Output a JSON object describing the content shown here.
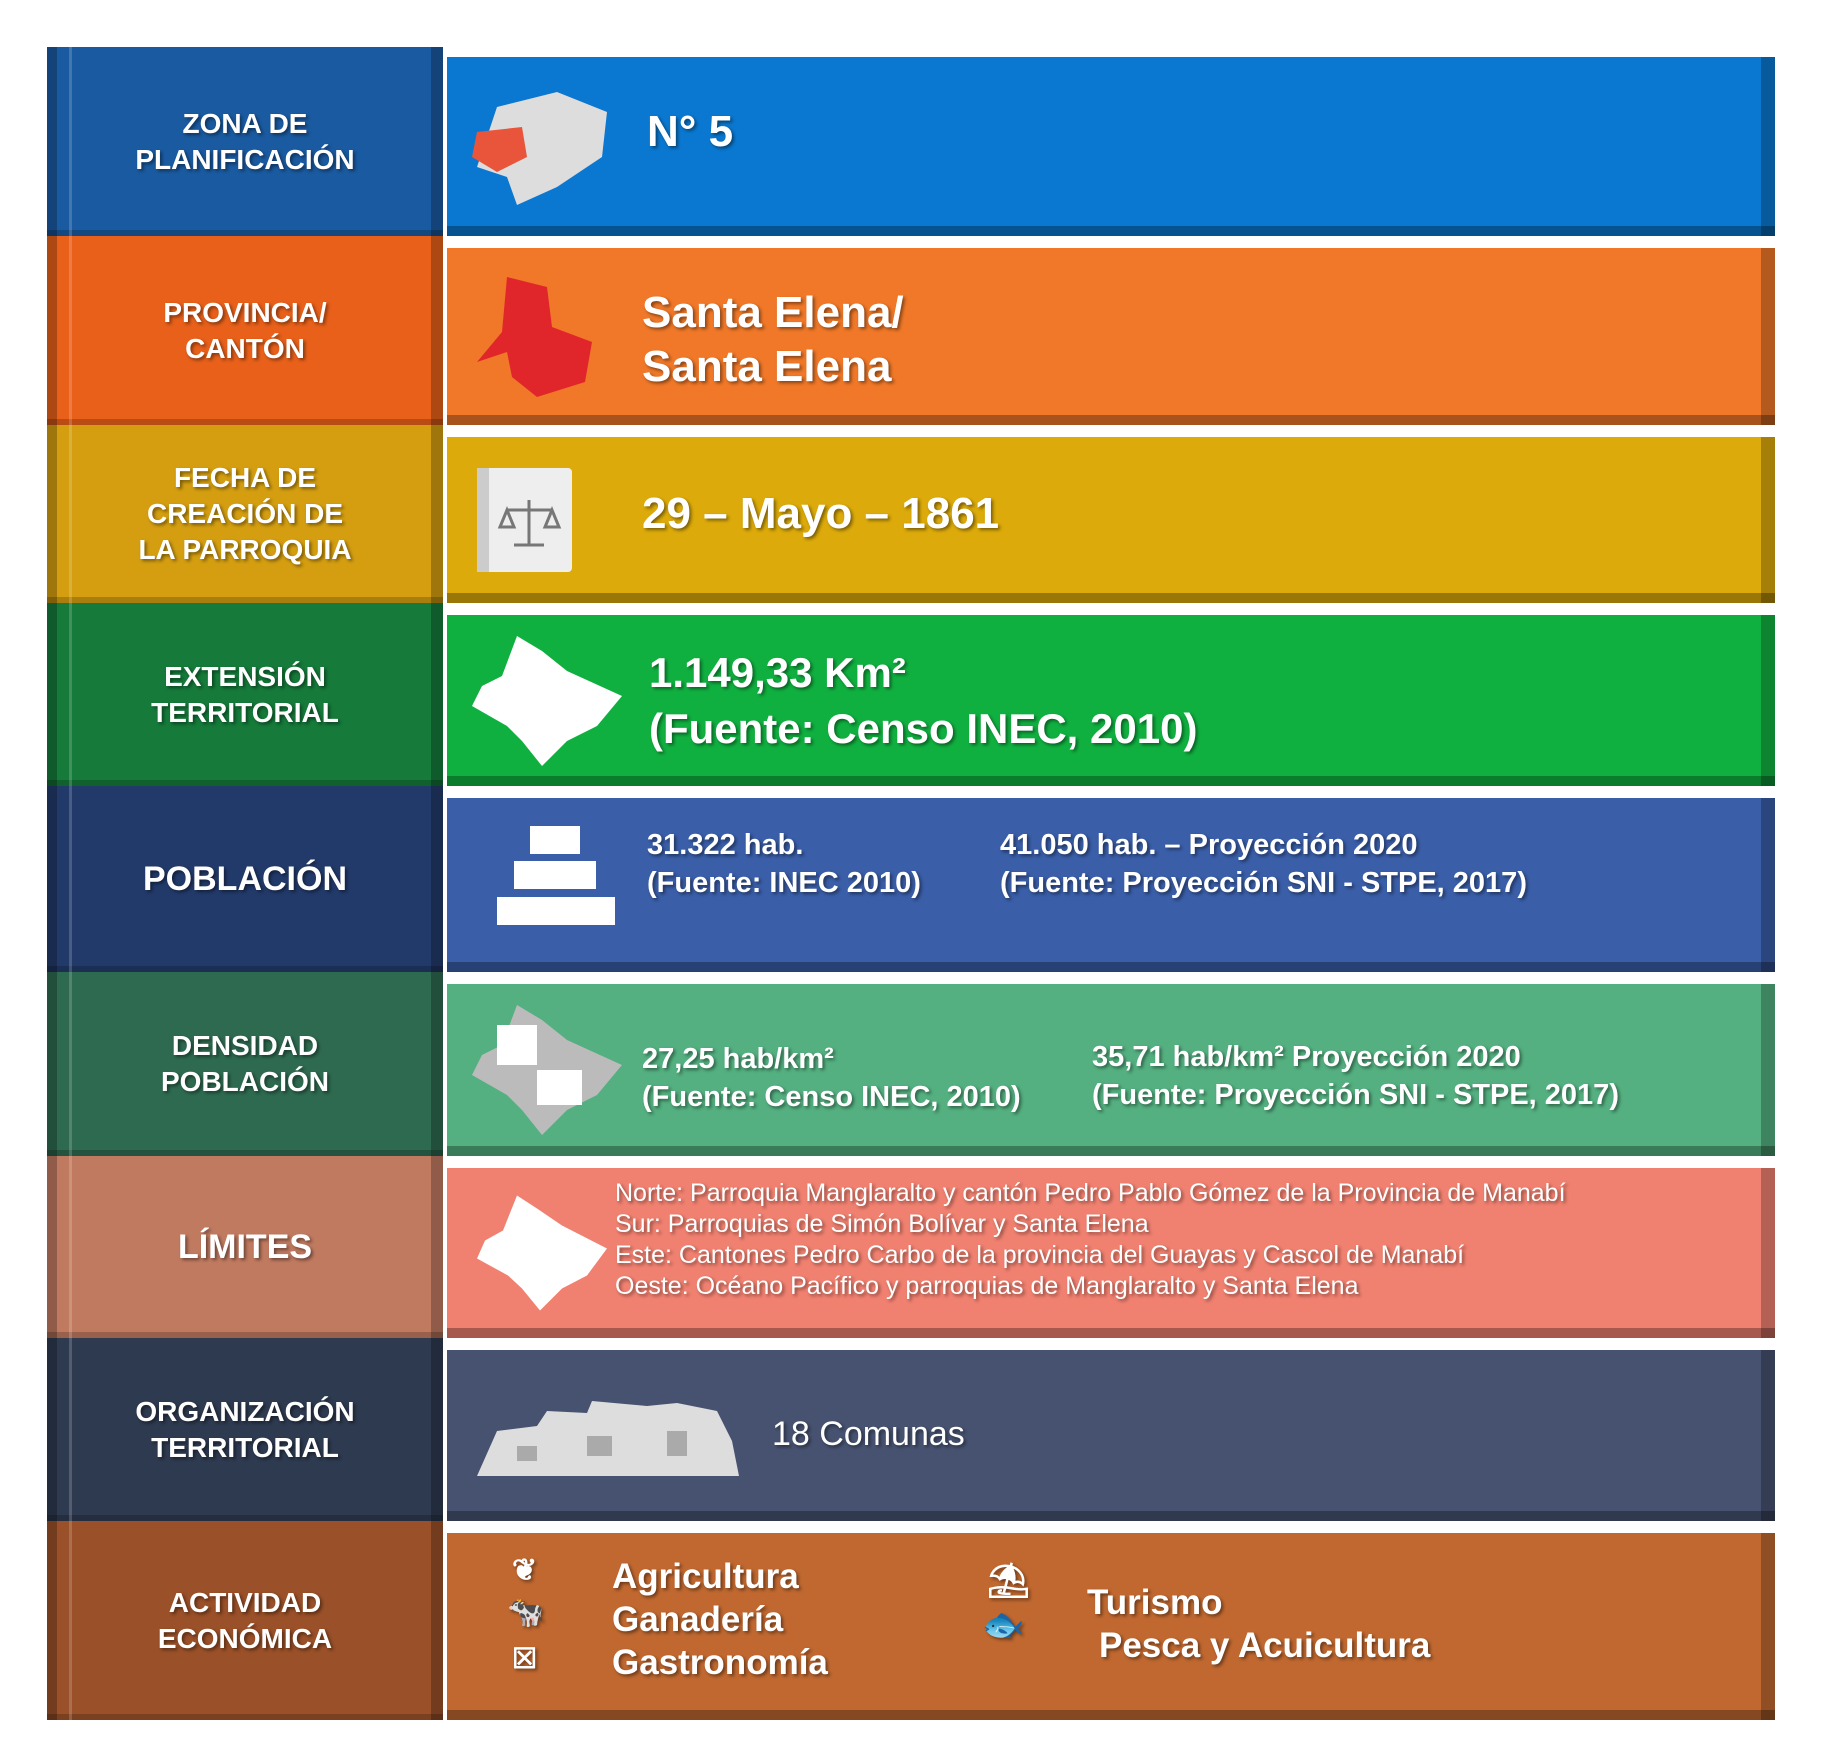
{
  "rows": [
    {
      "label": "ZONA DE\nPLANIFICACIÓN",
      "value": "N° 5",
      "icon": "ecuador-map-icon",
      "left_color": "#1a5aa0",
      "right_color": "#0a78d0"
    },
    {
      "label": "PROVINCIA/\nCANTÓN",
      "value": "Santa Elena/\nSanta Elena",
      "icon": "province-map-icon",
      "left_color": "#e8601a",
      "right_color": "#f07828"
    },
    {
      "label": "FECHA DE\nCREACIÓN DE\nLA PARROQUIA",
      "value": "29 – Mayo – 1861",
      "icon": "law-book-icon",
      "left_color": "#d49e10",
      "right_color": "#dcaa0a"
    },
    {
      "label": "EXTENSIÓN\nTERRITORIAL",
      "value": "1.149,33 Km²\n(Fuente: Censo INEC, 2010)",
      "icon": "territory-map-icon",
      "left_color": "#157a3a",
      "right_color": "#10b040"
    },
    {
      "label": "POBLACIÓN",
      "value_a": "31.322  hab.\n(Fuente: INEC 2010)",
      "value_b": "41.050  hab. – Proyección 2020\n(Fuente: Proyección SNI - STPE, 2017)",
      "icon": "population-icon",
      "left_color": "#223a6a",
      "right_color": "#3a5ea8"
    },
    {
      "label": "DENSIDAD\nPOBLACIÓN",
      "value_a": "27,25 hab/km²\n(Fuente: Censo INEC, 2010)",
      "value_b": "35,71  hab/km² Proyección 2020\n(Fuente: Proyección SNI - STPE, 2017)",
      "icon": "density-map-icon",
      "left_color": "#2e6a50",
      "right_color": "#54b080"
    },
    {
      "label": "LÍMITES",
      "lines": [
        "Norte: Parroquia Manglaralto y cantón Pedro Pablo Gómez de la Provincia de Manabí",
        "Sur: Parroquias de Simón Bolívar y Santa Elena",
        "Este: Cantones Pedro Carbo de la provincia del Guayas y Cascol de Manabí",
        "Oeste: Océano Pacífico y parroquias de Manglaralto y Santa Elena"
      ],
      "icon": "territory-map-icon",
      "left_color": "#c07a60",
      "right_color": "#f08070"
    },
    {
      "label": "ORGANIZACIÓN\nTERRITORIAL",
      "value": "18 Comunas",
      "icon": "town-icon",
      "left_color": "#2e3a50",
      "right_color": "#465270"
    },
    {
      "label": "ACTIVIDAD\nECONÓMICA",
      "activities": [
        "Agricultura",
        "Ganadería",
        "Gastronomía",
        "Turismo",
        "Pesca y Acuicultura"
      ],
      "icon": "activities-icons",
      "left_color": "#9a5028",
      "right_color": "#c06830"
    }
  ]
}
